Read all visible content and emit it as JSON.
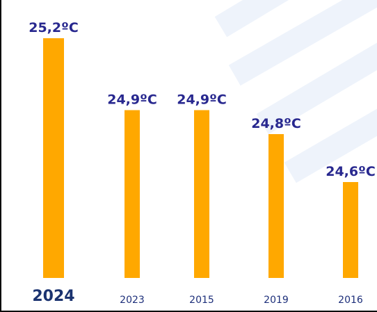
{
  "chart_data": {
    "type": "bar",
    "categories": [
      "2024",
      "2023",
      "2015",
      "2019",
      "2016"
    ],
    "values": [
      25.2,
      24.9,
      24.9,
      24.8,
      24.6
    ],
    "value_labels": [
      "25,2ºC",
      "24,9ºC",
      "24,9ºC",
      "24,8ºC",
      "24,6ºC"
    ],
    "highlight_category": "2024",
    "title": "",
    "xlabel": "",
    "ylabel": "",
    "grid": false,
    "colors": {
      "bar": "#ffa800",
      "value_label": "#28288f",
      "category_label": "#1d2f7a",
      "watermark": "#eef3fb"
    }
  }
}
